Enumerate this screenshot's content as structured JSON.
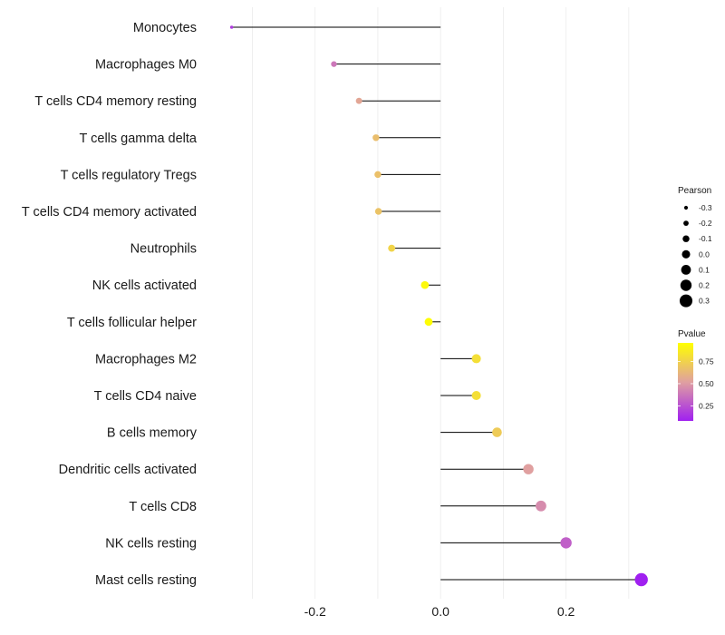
{
  "chart_data": {
    "type": "lollipop",
    "categories": [
      "Monocytes",
      "Macrophages M0",
      "T cells CD4 memory resting",
      "T cells gamma delta",
      "T cells regulatory  Tregs ",
      "T cells CD4 memory activated",
      "Neutrophils",
      "NK cells activated",
      "T cells follicular helper",
      "Macrophages M2",
      "T cells CD4 naive",
      "B cells memory",
      "Dendritic cells activated",
      "T cells CD8",
      "NK cells resting",
      "Mast cells resting"
    ],
    "pearson": [
      -0.333,
      -0.17,
      -0.13,
      -0.103,
      -0.1,
      -0.099,
      -0.078,
      -0.025,
      -0.019,
      0.057,
      0.057,
      0.09,
      0.14,
      0.16,
      0.2,
      0.32
    ],
    "pvalue": [
      0.18,
      0.38,
      0.55,
      0.66,
      0.67,
      0.68,
      0.76,
      0.93,
      0.95,
      0.81,
      0.81,
      0.72,
      0.52,
      0.45,
      0.3,
      0.08
    ],
    "xlim": [
      -0.37,
      0.345
    ],
    "x_ticks": [
      -0.2,
      0.0,
      0.2
    ],
    "x_tick_labels": [
      "-0.2",
      "0.0",
      "0.2"
    ],
    "grid": true,
    "xlabel": "",
    "ylabel": "",
    "legend_size": {
      "title": "Pearson",
      "values": [
        -0.3,
        -0.2,
        -0.1,
        0.0,
        0.1,
        0.2,
        0.3
      ],
      "labels": [
        "-0.3",
        "-0.2",
        "-0.1",
        "0.0",
        "0.1",
        "0.2",
        "0.3"
      ]
    },
    "legend_color": {
      "title": "Pvalue",
      "range": [
        0.08,
        0.96
      ],
      "ticks": [
        0.25,
        0.5,
        0.75
      ],
      "tick_labels": [
        "0.25",
        "0.50",
        "0.75"
      ],
      "colors": [
        "#a020f0",
        "#e0a0a0",
        "#ffff00"
      ]
    }
  }
}
